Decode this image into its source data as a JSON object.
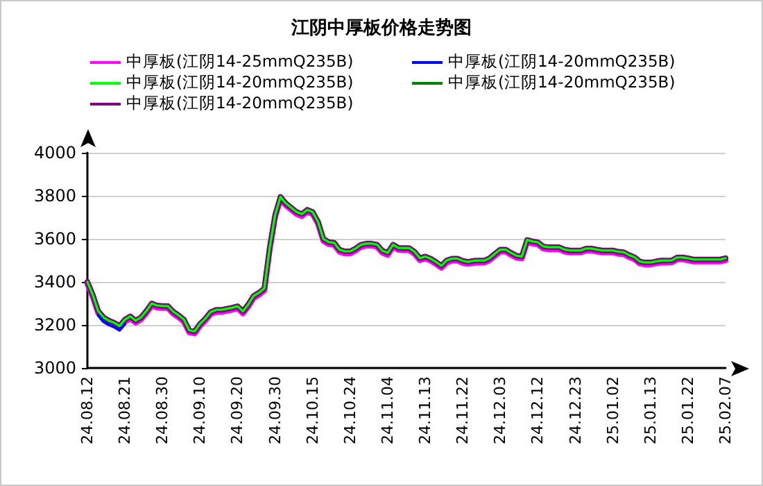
{
  "chart_data": {
    "type": "line",
    "title": "江阴中厚板价格走势图",
    "categories": [
      "24.08.12",
      null,
      null,
      null,
      null,
      null,
      null,
      "24.08.21",
      null,
      null,
      null,
      null,
      null,
      null,
      "24.08.30",
      null,
      null,
      null,
      null,
      null,
      null,
      "24.09.10",
      null,
      null,
      null,
      null,
      null,
      null,
      "24.09.20",
      null,
      null,
      null,
      null,
      null,
      null,
      "24.09.30",
      null,
      null,
      null,
      null,
      null,
      null,
      "24.10.15",
      null,
      null,
      null,
      null,
      null,
      null,
      "24.10.24",
      null,
      null,
      null,
      null,
      null,
      null,
      "24.11.04",
      null,
      null,
      null,
      null,
      null,
      null,
      "24.11.13",
      null,
      null,
      null,
      null,
      null,
      null,
      "24.11.22",
      null,
      null,
      null,
      null,
      null,
      null,
      "24.12.03",
      null,
      null,
      null,
      null,
      null,
      null,
      "24.12.12",
      null,
      null,
      null,
      null,
      null,
      null,
      "24.12.23",
      null,
      null,
      null,
      null,
      null,
      null,
      "25.01.02",
      null,
      null,
      null,
      null,
      null,
      null,
      "25.01.13",
      null,
      null,
      null,
      null,
      null,
      null,
      "25.01.22",
      null,
      null,
      null,
      null,
      null,
      null,
      "25.02.07"
    ],
    "series": [
      {
        "name": "中厚板(江阴14-20mmQ235B)",
        "color": "#0000ff",
        "values": [
          null,
          null,
          3245,
          3215,
          3200,
          3190,
          3175,
          3205,
          null,
          null,
          null,
          null,
          null,
          null,
          null,
          null,
          null,
          null,
          null,
          null,
          null,
          null,
          null,
          null,
          null,
          null,
          null,
          null,
          null,
          null,
          null,
          null,
          null,
          null,
          null,
          null,
          null,
          null,
          null,
          null,
          null,
          null,
          null,
          null,
          null,
          null,
          null,
          null,
          null,
          null,
          null,
          null,
          null,
          null,
          null,
          null,
          null,
          null,
          null,
          null,
          null,
          null,
          null,
          null,
          null,
          null,
          null,
          null,
          null,
          null,
          null,
          null,
          null,
          null,
          null,
          null,
          null,
          null,
          null,
          null,
          null,
          null,
          null,
          null,
          null,
          null,
          null,
          null,
          null,
          null,
          null,
          null,
          null,
          null,
          null,
          null,
          null,
          null,
          null,
          null,
          null,
          null,
          null,
          null,
          null,
          null,
          null,
          null,
          null,
          null,
          null,
          null,
          null,
          null,
          null,
          null,
          null,
          null,
          null,
          null
        ]
      },
      {
        "name": "中厚板(江阴14-25mmQ235B)",
        "color": "#ff00ff",
        "values": [
          3390,
          3330,
          3255,
          3225,
          3210,
          3200,
          3185,
          3215,
          3230,
          3210,
          3225,
          3255,
          3290,
          3280,
          3278,
          3278,
          3252,
          3235,
          3215,
          3165,
          3160,
          3195,
          3220,
          3250,
          3260,
          3260,
          3265,
          3270,
          3277,
          3253,
          3285,
          3325,
          3340,
          3360,
          3550,
          3700,
          3785,
          3755,
          3735,
          3715,
          3705,
          3725,
          3715,
          3670,
          3590,
          3575,
          3572,
          3540,
          3532,
          3532,
          3545,
          3562,
          3568,
          3568,
          3563,
          3535,
          3525,
          3563,
          3548,
          3547,
          3547,
          3530,
          3500,
          3508,
          3498,
          3483,
          3465,
          3490,
          3498,
          3498,
          3488,
          3483,
          3488,
          3489,
          3489,
          3500,
          3521,
          3540,
          3540,
          3525,
          3512,
          3508,
          3585,
          3578,
          3574,
          3555,
          3551,
          3551,
          3551,
          3540,
          3536,
          3536,
          3536,
          3545,
          3545,
          3540,
          3536,
          3536,
          3536,
          3530,
          3528,
          3515,
          3505,
          3485,
          3480,
          3480,
          3485,
          3489,
          3489,
          3490,
          3504,
          3504,
          3500,
          3494,
          3494,
          3494,
          3494,
          3494,
          3494,
          3500
        ]
      },
      {
        "name": "中厚板(江阴14-20mmQ235B)",
        "color": "#800080",
        "values": [
          3400,
          3340,
          3265,
          3235,
          3220,
          3210,
          3195,
          3225,
          3240,
          3220,
          3235,
          3265,
          3300,
          3290,
          3288,
          3288,
          3262,
          3245,
          3225,
          3175,
          3170,
          3205,
          3230,
          3260,
          3270,
          3270,
          3275,
          3280,
          3287,
          3263,
          3295,
          3335,
          3350,
          3370,
          3560,
          3710,
          3795,
          3765,
          3745,
          3725,
          3715,
          3735,
          3725,
          3680,
          3600,
          3585,
          3582,
          3550,
          3542,
          3542,
          3555,
          3572,
          3578,
          3578,
          3573,
          3545,
          3535,
          3573,
          3558,
          3557,
          3557,
          3540,
          3510,
          3518,
          3508,
          3493,
          3475,
          3500,
          3508,
          3508,
          3498,
          3493,
          3498,
          3499,
          3499,
          3510,
          3531,
          3550,
          3550,
          3535,
          3522,
          3518,
          3595,
          3588,
          3584,
          3565,
          3561,
          3561,
          3561,
          3550,
          3546,
          3546,
          3546,
          3555,
          3555,
          3550,
          3546,
          3546,
          3546,
          3540,
          3538,
          3525,
          3515,
          3495,
          3490,
          3490,
          3495,
          3499,
          3499,
          3500,
          3514,
          3514,
          3510,
          3504,
          3504,
          3504,
          3504,
          3504,
          3504,
          3510
        ]
      },
      {
        "name": "中厚板(江阴14-20mmQ235B)",
        "color": "#008000",
        "values": [
          3400,
          3340,
          3265,
          3235,
          3220,
          3210,
          3195,
          3225,
          3240,
          3220,
          3235,
          3265,
          3300,
          3290,
          3288,
          3288,
          3262,
          3245,
          3225,
          3175,
          3170,
          3205,
          3230,
          3260,
          3270,
          3270,
          3275,
          3280,
          3287,
          3263,
          3295,
          3335,
          3350,
          3370,
          3560,
          3710,
          3795,
          3765,
          3745,
          3725,
          3715,
          3735,
          3725,
          3680,
          3600,
          3585,
          3582,
          3550,
          3542,
          3542,
          3555,
          3572,
          3578,
          3578,
          3573,
          3545,
          3535,
          3573,
          3558,
          3557,
          3557,
          3540,
          3510,
          3518,
          3508,
          3493,
          3475,
          3500,
          3508,
          3508,
          3498,
          3493,
          3498,
          3499,
          3499,
          3510,
          3531,
          3550,
          3550,
          3535,
          3522,
          3518,
          3595,
          3588,
          3584,
          3565,
          3561,
          3561,
          3561,
          3550,
          3546,
          3546,
          3546,
          3555,
          3555,
          3550,
          3546,
          3546,
          3546,
          3540,
          3538,
          3525,
          3515,
          3495,
          3490,
          3490,
          3495,
          3499,
          3499,
          3500,
          3514,
          3514,
          3510,
          3504,
          3504,
          3504,
          3504,
          3504,
          3504,
          3510
        ]
      },
      {
        "name": "中厚板(江阴14-20mmQ235B)",
        "color": "#00ff00",
        "values": [
          3400,
          3340,
          3265,
          3235,
          3220,
          3210,
          3195,
          3225,
          3240,
          3220,
          3235,
          3265,
          3300,
          3290,
          3288,
          3288,
          3262,
          3245,
          3225,
          3175,
          3170,
          3205,
          3230,
          3260,
          3270,
          3270,
          3275,
          3280,
          3287,
          3263,
          3295,
          3335,
          3350,
          3370,
          3560,
          3710,
          3795,
          3765,
          3745,
          3725,
          3715,
          3735,
          3725,
          3680,
          3600,
          3585,
          3582,
          3550,
          3542,
          3542,
          3555,
          3572,
          3578,
          3578,
          3573,
          3545,
          3535,
          3573,
          3558,
          3557,
          3557,
          3540,
          3510,
          3518,
          3508,
          3493,
          3475,
          3500,
          3508,
          3508,
          3498,
          3493,
          3498,
          3499,
          3499,
          3510,
          3531,
          3550,
          3550,
          3535,
          3522,
          3518,
          3595,
          3588,
          3584,
          3565,
          3561,
          3561,
          3561,
          3550,
          3546,
          3546,
          3546,
          3555,
          3555,
          3550,
          3546,
          3546,
          3546,
          3540,
          3538,
          3525,
          3515,
          3495,
          3490,
          3490,
          3495,
          3499,
          3499,
          3500,
          3514,
          3514,
          3510,
          3504,
          3504,
          3504,
          3504,
          3504,
          3504,
          3510
        ]
      }
    ],
    "ylim": [
      3000,
      4000
    ],
    "yticks": [
      3000,
      3200,
      3400,
      3600,
      3800,
      4000
    ],
    "grid": "y",
    "legend": "top",
    "marker": "none",
    "line_style": "solid"
  }
}
